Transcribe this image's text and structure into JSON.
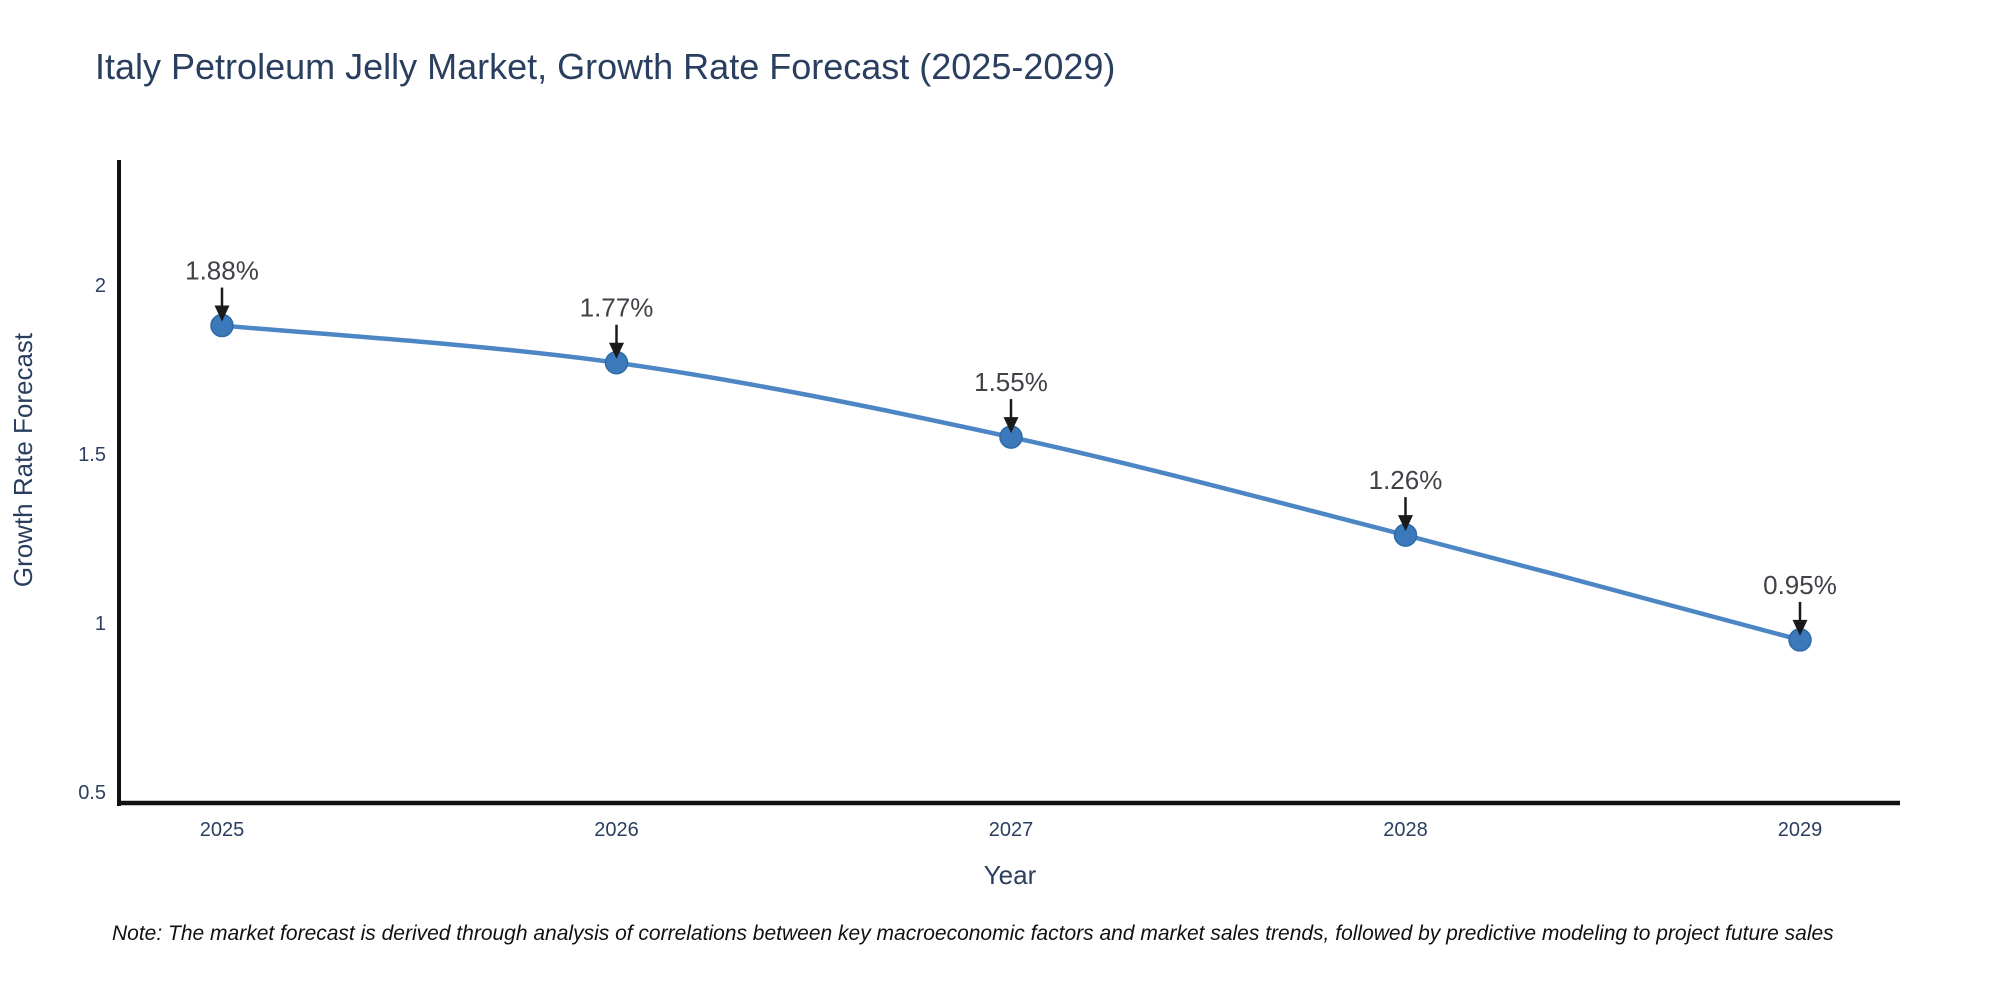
{
  "note": "Note: The market forecast is derived through analysis of correlations between key macroeconomic factors and market sales trends, followed by predictive modeling to project future sales",
  "chart_data": {
    "type": "line",
    "title": "Italy Petroleum Jelly Market, Growth Rate Forecast (2025-2029)",
    "xlabel": "Year",
    "ylabel": "Growth Rate Forecast",
    "categories": [
      "2025",
      "2026",
      "2027",
      "2028",
      "2029"
    ],
    "series": [
      {
        "name": "Growth Rate Forecast",
        "values": [
          1.88,
          1.77,
          1.55,
          1.26,
          0.95
        ]
      }
    ],
    "point_labels": [
      "1.88%",
      "1.77%",
      "1.55%",
      "1.26%",
      "0.95%"
    ],
    "yticks": [
      0.5,
      1,
      1.5,
      2
    ],
    "ytick_labels": [
      "0.5",
      "1",
      "1.5",
      "2"
    ],
    "ylim": [
      0.46,
      2.37
    ],
    "grid": false,
    "legend": "none",
    "line_shape": "spline",
    "marker": "circle",
    "annotation_arrows": true,
    "colors": {
      "line": "#4d86c4",
      "marker": "#3b79ba",
      "marker_edge": "#2f6aa8",
      "axis": "#111111",
      "arrow": "#1a1a1a",
      "title_text": "#2a3f5f",
      "tick_text": "#2a3f5f",
      "annotation_text": "#3f4247",
      "note_text": "#101010"
    }
  }
}
